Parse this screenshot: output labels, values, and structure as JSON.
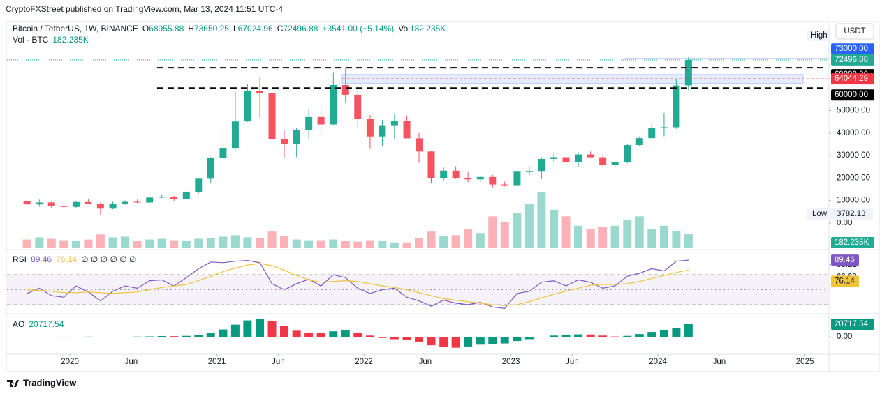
{
  "header": {
    "publisher": "CryptoFXStreet published on TradingView.com, Mar 13, 2024 11:51 UTC-4",
    "symbol": "Bitcoin / TetherUS, 1W, BINANCE",
    "ohlc": [
      {
        "key": "O",
        "value": 68955.88
      },
      {
        "key": "H",
        "value": 73650.25
      },
      {
        "key": "L",
        "value": 67024.96
      },
      {
        "key": "C",
        "value": 72496.88
      }
    ],
    "change": "+3541.00 (+5.14%)",
    "vol_key": "Vol",
    "vol_value": "182.235K",
    "vol_line_key": "Vol · BTC",
    "vol_line_value": "182.235K"
  },
  "chart_data": [
    {
      "type": "candlestick",
      "x": [
        2019.708,
        2019.792,
        2019.875,
        2019.958,
        2020.042,
        2020.125,
        2020.208,
        2020.292,
        2020.375,
        2020.458,
        2020.542,
        2020.625,
        2020.708,
        2020.792,
        2020.875,
        2020.958,
        2021.042,
        2021.125,
        2021.208,
        2021.292,
        2021.375,
        2021.458,
        2021.542,
        2021.625,
        2021.708,
        2021.792,
        2021.875,
        2021.958,
        2022.042,
        2022.125,
        2022.208,
        2022.292,
        2022.375,
        2022.458,
        2022.542,
        2022.625,
        2022.708,
        2022.792,
        2022.875,
        2022.958,
        2023.042,
        2023.125,
        2023.208,
        2023.292,
        2023.375,
        2023.458,
        2023.542,
        2023.625,
        2023.708,
        2023.792,
        2023.875,
        2023.958,
        2024.042,
        2024.125,
        2024.208
      ],
      "open": [
        9600,
        8300,
        9150,
        7550,
        7190,
        9350,
        8550,
        6420,
        8620,
        9450,
        9140,
        11350,
        11650,
        10780,
        13800,
        19700,
        28990,
        33110,
        45140,
        58800,
        57700,
        37300,
        35040,
        41460,
        47100,
        43800,
        61300,
        57000,
        46200,
        38470,
        43160,
        45500,
        37640,
        31790,
        19930,
        23300,
        20050,
        19420,
        20490,
        17170,
        16540,
        23140,
        23150,
        28480,
        29250,
        27220,
        30480,
        29230,
        25940,
        26970,
        34650,
        37720,
        42280,
        42580,
        61130
      ],
      "high": [
        10900,
        10400,
        9500,
        7750,
        9600,
        10500,
        9200,
        9450,
        10070,
        10400,
        11450,
        12470,
        12100,
        14100,
        19900,
        29300,
        41950,
        58350,
        61800,
        64850,
        59500,
        41300,
        42450,
        50500,
        52900,
        67000,
        69000,
        59100,
        47990,
        45800,
        48200,
        47450,
        40000,
        31950,
        24670,
        25200,
        22800,
        21100,
        21480,
        18400,
        23950,
        25250,
        29200,
        31000,
        29820,
        31390,
        31800,
        30250,
        27480,
        35200,
        38450,
        44700,
        48970,
        63900,
        73650.25
      ],
      "low": [
        7700,
        7300,
        6500,
        6400,
        6850,
        8450,
        3782.13,
        6150,
        8100,
        8900,
        8950,
        11100,
        9880,
        10370,
        13200,
        17600,
        28130,
        32300,
        44950,
        47000,
        30000,
        28800,
        29300,
        37330,
        39600,
        43300,
        53250,
        42000,
        32950,
        34300,
        37150,
        37700,
        26700,
        17600,
        18780,
        19520,
        18150,
        18200,
        15480,
        16260,
        16500,
        21350,
        19550,
        26940,
        25800,
        24800,
        28860,
        25160,
        24900,
        26550,
        34100,
        37600,
        38550,
        41880,
        59000
      ],
      "close": [
        8300,
        9150,
        7550,
        7190,
        9350,
        8550,
        6420,
        8620,
        9450,
        9140,
        11350,
        11650,
        10780,
        13800,
        19700,
        28990,
        33110,
        45140,
        58800,
        57700,
        37300,
        35040,
        41460,
        47100,
        43800,
        61300,
        57000,
        46200,
        38470,
        43160,
        45500,
        37640,
        31790,
        19930,
        23300,
        20050,
        19420,
        20490,
        17170,
        16540,
        23140,
        23150,
        28480,
        29250,
        27220,
        30480,
        29230,
        25940,
        26970,
        34650,
        37720,
        42280,
        42580,
        61130,
        72496.88
      ],
      "volume": [
        110,
        140,
        120,
        100,
        95,
        110,
        180,
        140,
        150,
        90,
        110,
        120,
        100,
        90,
        120,
        130,
        150,
        170,
        140,
        130,
        220,
        160,
        110,
        100,
        100,
        110,
        90,
        80,
        100,
        90,
        70,
        70,
        130,
        220,
        160,
        170,
        250,
        200,
        430,
        350,
        480,
        600,
        770,
        520,
        430,
        300,
        250,
        280,
        300,
        380,
        430,
        250,
        300,
        230,
        182.235
      ],
      "volume_badge": "182.235K",
      "up_color": "#22ab94",
      "down_color": "#f7525f",
      "xlim": [
        2019.572,
        2025.154
      ],
      "xticks": [
        {
          "value": 2020,
          "label": "2020"
        },
        {
          "value": 2020.417,
          "label": "Jun"
        },
        {
          "value": 2021,
          "label": "2021"
        },
        {
          "value": 2021.417,
          "label": "Jun"
        },
        {
          "value": 2022,
          "label": "2022"
        },
        {
          "value": 2022.417,
          "label": "Jun"
        },
        {
          "value": 2023,
          "label": "2023"
        },
        {
          "value": 2023.417,
          "label": "Jun"
        },
        {
          "value": 2024,
          "label": "2024"
        },
        {
          "value": 2024.417,
          "label": "Jun"
        },
        {
          "value": 2025,
          "label": "2025"
        }
      ],
      "ylim": [
        -10836,
        89780
      ],
      "yticks": [
        {
          "value": 50000,
          "label": "50000.00"
        },
        {
          "value": 40000,
          "label": "40000.00"
        },
        {
          "value": 30000,
          "label": "30000.00"
        },
        {
          "value": 20000,
          "label": "20000.00"
        },
        {
          "value": 10000,
          "label": "10000.00"
        },
        {
          "value": 0,
          "label": "0.00"
        }
      ],
      "levels": [
        {
          "value": 73000,
          "label": "73000.00",
          "color": "#2962ff",
          "style": "solid",
          "from": 2023.767
        },
        {
          "value": 69000,
          "label": "69000.00",
          "color": "#000000",
          "style": "dashed",
          "from": 2020.593
        },
        {
          "value": 64044.29,
          "label": "64044.29",
          "color": "#f23645",
          "style": "dotted",
          "from": 2021.852
        },
        {
          "value": 60000,
          "label": "60000.00",
          "color": "#000000",
          "style": "dashed",
          "from": 2020.593
        }
      ],
      "zone": {
        "low": 62000,
        "high": 66000,
        "from": 2021.852,
        "to": 2024.988,
        "color": "#2962ff"
      },
      "high_label": "High",
      "low_label": "Low",
      "currency": "USDT"
    },
    {
      "type": "line",
      "title": "RSI",
      "x": [
        2019.708,
        2019.792,
        2019.875,
        2019.958,
        2020.042,
        2020.125,
        2020.208,
        2020.292,
        2020.375,
        2020.458,
        2020.542,
        2020.625,
        2020.708,
        2020.792,
        2020.875,
        2020.958,
        2021.042,
        2021.125,
        2021.208,
        2021.292,
        2021.375,
        2021.458,
        2021.542,
        2021.625,
        2021.708,
        2021.792,
        2021.875,
        2021.958,
        2022.042,
        2022.125,
        2022.208,
        2022.292,
        2022.375,
        2022.458,
        2022.542,
        2022.625,
        2022.708,
        2022.792,
        2022.875,
        2022.958,
        2023.042,
        2023.125,
        2023.208,
        2023.292,
        2023.375,
        2023.458,
        2023.542,
        2023.625,
        2023.708,
        2023.792,
        2023.875,
        2023.958,
        2024.042,
        2024.125,
        2024.208
      ],
      "series": [
        {
          "color": "#7e57c2",
          "values": [
            45,
            52,
            42,
            40,
            55,
            47,
            35,
            48,
            55,
            52,
            62,
            63,
            55,
            66,
            78,
            87,
            86,
            88,
            89,
            86,
            58,
            50,
            58,
            64,
            55,
            70,
            66,
            52,
            45,
            50,
            52,
            40,
            35,
            28,
            36,
            32,
            30,
            33,
            27,
            25,
            45,
            48,
            60,
            62,
            55,
            63,
            60,
            52,
            55,
            68,
            72,
            78,
            75,
            88,
            89.46
          ]
        },
        {
          "color": "#f0c43a",
          "values": [
            50,
            49,
            48,
            46,
            46,
            47,
            46,
            45,
            46,
            47,
            50,
            53,
            55,
            57,
            62,
            68,
            74,
            79,
            83,
            85,
            82,
            76,
            69,
            63,
            60,
            61,
            62,
            61,
            58,
            55,
            53,
            50,
            46,
            42,
            38,
            36,
            34,
            32,
            30,
            29,
            30,
            34,
            39,
            44,
            48,
            52,
            56,
            57,
            57,
            58,
            61,
            65,
            69,
            73,
            76.14
          ]
        }
      ],
      "empty_inputs": "∅ ∅ ∅ ∅ ∅ ∅",
      "ylim": [
        20.7,
        99.8
      ],
      "yticks": [
        83.22,
        66.63
      ],
      "bands": [
        70,
        50,
        30
      ],
      "band_color": "#7e57c2"
    },
    {
      "type": "bar",
      "title": "AO",
      "x": [
        2019.708,
        2019.792,
        2019.875,
        2019.958,
        2020.042,
        2020.125,
        2020.208,
        2020.292,
        2020.375,
        2020.458,
        2020.542,
        2020.625,
        2020.708,
        2020.792,
        2020.875,
        2020.958,
        2021.042,
        2021.125,
        2021.208,
        2021.292,
        2021.375,
        2021.458,
        2021.542,
        2021.625,
        2021.708,
        2021.792,
        2021.875,
        2021.958,
        2022.042,
        2022.125,
        2022.208,
        2022.292,
        2022.375,
        2022.458,
        2022.542,
        2022.625,
        2022.708,
        2022.792,
        2022.875,
        2022.958,
        2023.042,
        2023.125,
        2023.208,
        2023.292,
        2023.375,
        2023.458,
        2023.542,
        2023.625,
        2023.708,
        2023.792,
        2023.875,
        2023.958,
        2024.042,
        2024.125,
        2024.208
      ],
      "values": [
        -800,
        -600,
        -900,
        -1200,
        -600,
        200,
        -900,
        -1100,
        -300,
        300,
        600,
        1200,
        1000,
        1500,
        3500,
        7000,
        12000,
        20000,
        27000,
        30000,
        26000,
        18000,
        10000,
        7000,
        6000,
        9000,
        11000,
        7000,
        2000,
        -2000,
        -4000,
        -5000,
        -8000,
        -14000,
        -17000,
        -18000,
        -16000,
        -13000,
        -12000,
        -11000,
        -7000,
        -4000,
        -1000,
        2000,
        3500,
        4000,
        3800,
        2000,
        500,
        1500,
        4500,
        8000,
        10500,
        14000,
        20717.54
      ],
      "up_color": "#089981",
      "down_color": "#f23645",
      "ylim": [
        -25300,
        35700
      ],
      "yticks": [
        {
          "value": 0,
          "label": "0.00"
        }
      ]
    }
  ],
  "footer": "TradingView"
}
